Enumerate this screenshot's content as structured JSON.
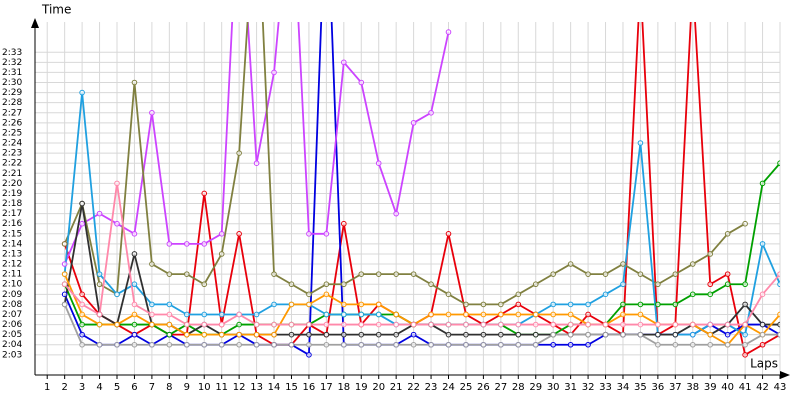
{
  "chart_data": {
    "type": "line",
    "y_label": "Time",
    "x_label": "Laps",
    "grid": true,
    "x": [
      1,
      2,
      3,
      4,
      5,
      6,
      7,
      8,
      9,
      10,
      11,
      12,
      13,
      14,
      15,
      16,
      17,
      18,
      19,
      20,
      21,
      22,
      23,
      24,
      25,
      26,
      27,
      28,
      29,
      30,
      31,
      32,
      33,
      34,
      35,
      36,
      37,
      38,
      39,
      40,
      41,
      42,
      43
    ],
    "xticks": [
      1,
      2,
      3,
      4,
      5,
      6,
      7,
      8,
      9,
      10,
      11,
      12,
      13,
      14,
      15,
      16,
      17,
      18,
      19,
      20,
      21,
      22,
      23,
      24,
      25,
      26,
      27,
      28,
      29,
      30,
      31,
      32,
      33,
      34,
      35,
      36,
      37,
      38,
      39,
      40,
      41,
      42,
      43
    ],
    "xlim": [
      0.3,
      43
    ],
    "ylim": [
      121,
      156
    ],
    "yticks": [
      {
        "value": 123,
        "label": "2:03"
      },
      {
        "value": 124,
        "label": "2:04"
      },
      {
        "value": 125,
        "label": "2:05"
      },
      {
        "value": 126,
        "label": "2:06"
      },
      {
        "value": 127,
        "label": "2:07"
      },
      {
        "value": 128,
        "label": "2:08"
      },
      {
        "value": 129,
        "label": "2:09"
      },
      {
        "value": 130,
        "label": "2:10"
      },
      {
        "value": 131,
        "label": "2:11"
      },
      {
        "value": 132,
        "label": "2:12"
      },
      {
        "value": 133,
        "label": "2:13"
      },
      {
        "value": 134,
        "label": "2:14"
      },
      {
        "value": 135,
        "label": "2:15"
      },
      {
        "value": 136,
        "label": "2:16"
      },
      {
        "value": 137,
        "label": "2:17"
      },
      {
        "value": 138,
        "label": "2:18"
      },
      {
        "value": 139,
        "label": "2:19"
      },
      {
        "value": 140,
        "label": "2:20"
      },
      {
        "value": 141,
        "label": "2:21"
      },
      {
        "value": 142,
        "label": "2:22"
      },
      {
        "value": 143,
        "label": "2:23"
      },
      {
        "value": 144,
        "label": "2:24"
      },
      {
        "value": 145,
        "label": "2:25"
      },
      {
        "value": 146,
        "label": "2:26"
      },
      {
        "value": 147,
        "label": "2:27"
      },
      {
        "value": 148,
        "label": "2:28"
      },
      {
        "value": 149,
        "label": "2:29"
      },
      {
        "value": 150,
        "label": "2:30"
      },
      {
        "value": 151,
        "label": "2:31"
      },
      {
        "value": 152,
        "label": "2:32"
      },
      {
        "value": 153,
        "label": "2:33"
      }
    ],
    "series": [
      {
        "color": "#e8000b",
        "values": [
          null,
          134,
          129,
          127,
          126,
          125,
          126,
          125,
          125,
          139,
          126,
          135,
          125,
          124,
          124,
          126,
          125,
          136,
          126,
          128,
          127,
          126,
          127,
          135,
          127,
          126,
          127,
          128,
          127,
          126,
          125,
          127,
          126,
          125,
          160,
          125,
          126,
          160,
          130,
          131,
          123,
          124,
          125
        ]
      },
      {
        "color": "#0000e0",
        "values": [
          null,
          129,
          125,
          124,
          124,
          125,
          124,
          125,
          124,
          124,
          124,
          125,
          124,
          124,
          124,
          123,
          170,
          124,
          124,
          124,
          124,
          125,
          124,
          124,
          124,
          124,
          124,
          124,
          124,
          124,
          124,
          124,
          125,
          125,
          125,
          125,
          125,
          125,
          126,
          125,
          126,
          126,
          125
        ]
      },
      {
        "color": "#cc44ff",
        "values": [
          null,
          132,
          136,
          137,
          136,
          135,
          147,
          134,
          134,
          134,
          135,
          170,
          142,
          151,
          170,
          135,
          135,
          152,
          150,
          142,
          137,
          146,
          147,
          155,
          null,
          null,
          null,
          null,
          null,
          null,
          null,
          null,
          null,
          null,
          null,
          null,
          null,
          null,
          null,
          null,
          null,
          null,
          null
        ]
      },
      {
        "color": "#808040",
        "values": [
          null,
          134,
          138,
          130,
          129,
          150,
          132,
          131,
          131,
          130,
          133,
          143,
          170,
          131,
          130,
          129,
          130,
          130,
          131,
          131,
          131,
          131,
          130,
          129,
          128,
          128,
          128,
          129,
          130,
          131,
          132,
          131,
          131,
          132,
          131,
          130,
          131,
          132,
          133,
          135,
          136,
          null,
          null
        ]
      },
      {
        "color": "#00a000",
        "values": [
          null,
          130,
          126,
          126,
          126,
          126,
          126,
          125,
          126,
          125,
          125,
          126,
          126,
          126,
          126,
          126,
          127,
          127,
          127,
          127,
          127,
          126,
          126,
          126,
          126,
          126,
          126,
          125,
          125,
          125,
          126,
          126,
          126,
          128,
          128,
          128,
          128,
          129,
          129,
          130,
          130,
          140,
          142
        ]
      },
      {
        "color": "#20a0e0",
        "values": [
          null,
          131,
          149,
          131,
          129,
          130,
          128,
          128,
          127,
          127,
          127,
          127,
          127,
          128,
          128,
          128,
          127,
          127,
          127,
          127,
          126,
          126,
          126,
          126,
          126,
          126,
          126,
          126,
          127,
          128,
          128,
          128,
          129,
          130,
          144,
          125,
          125,
          125,
          126,
          126,
          125,
          134,
          130
        ]
      },
      {
        "color": "#303030",
        "values": [
          null,
          128,
          138,
          127,
          126,
          133,
          126,
          126,
          125,
          126,
          125,
          125,
          125,
          125,
          125,
          125,
          125,
          125,
          125,
          125,
          125,
          126,
          126,
          125,
          125,
          125,
          125,
          125,
          125,
          125,
          125,
          125,
          125,
          125,
          125,
          125,
          125,
          126,
          125,
          126,
          128,
          126,
          126
        ]
      },
      {
        "color": "#ff9900",
        "values": [
          null,
          131,
          127,
          126,
          126,
          127,
          126,
          126,
          125,
          125,
          125,
          125,
          125,
          125,
          128,
          128,
          129,
          128,
          128,
          128,
          127,
          126,
          127,
          127,
          127,
          127,
          127,
          127,
          127,
          127,
          127,
          126,
          126,
          127,
          127,
          126,
          126,
          126,
          125,
          124,
          126,
          125,
          127
        ]
      },
      {
        "color": "#ff88aa",
        "values": [
          null,
          130,
          128,
          127,
          140,
          128,
          127,
          127,
          126,
          126,
          126,
          127,
          126,
          126,
          126,
          126,
          126,
          126,
          126,
          126,
          126,
          126,
          126,
          126,
          126,
          126,
          126,
          126,
          126,
          126,
          126,
          126,
          126,
          126,
          126,
          126,
          126,
          126,
          126,
          126,
          126,
          129,
          131
        ]
      },
      {
        "color": "#a0a0a0",
        "values": [
          null,
          128,
          124,
          124,
          124,
          124,
          124,
          124,
          124,
          124,
          124,
          124,
          124,
          124,
          124,
          124,
          124,
          124,
          124,
          124,
          124,
          124,
          124,
          124,
          124,
          124,
          124,
          124,
          124,
          125,
          125,
          125,
          125,
          125,
          125,
          124,
          124,
          124,
          124,
          124,
          124,
          125,
          125
        ]
      }
    ]
  }
}
